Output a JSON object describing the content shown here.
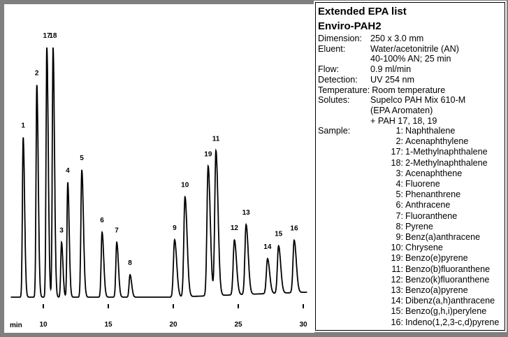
{
  "info": {
    "title1": "Extended EPA list",
    "title2": "Enviro-PAH2",
    "rows": [
      {
        "key": "Dimension:",
        "value": "250 x 3.0 mm"
      },
      {
        "key": "Eluent:",
        "value": "Water/acetonitrile (AN)"
      },
      {
        "key": "",
        "value": "40-100% AN; 25 min"
      },
      {
        "key": "Flow:",
        "value": "0.9 ml/min"
      },
      {
        "key": "Detection:",
        "value": "UV 254 nm"
      },
      {
        "key": "Temperature:",
        "value": "Room temperature"
      },
      {
        "key": "Solutes:",
        "value": "Supelco PAH Mix 610-M"
      },
      {
        "key": "",
        "value": "(EPA Aromaten)"
      },
      {
        "key": "",
        "value": "+ PAH 17, 18, 19"
      }
    ],
    "sample_label": "Sample:",
    "sample": [
      {
        "n": "1:",
        "name": "Naphthalene"
      },
      {
        "n": "2:",
        "name": "Acenaphthylene"
      },
      {
        "n": "17:",
        "name": "1-Methylnaphthalene"
      },
      {
        "n": "18:",
        "name": "2-Methylnaphthalene"
      },
      {
        "n": "3:",
        "name": "Acenaphthene"
      },
      {
        "n": "4:",
        "name": "Fluorene"
      },
      {
        "n": "5:",
        "name": "Phenanthrene"
      },
      {
        "n": "6:",
        "name": "Anthracene"
      },
      {
        "n": "7:",
        "name": "Fluoranthene"
      },
      {
        "n": "8:",
        "name": "Pyrene"
      },
      {
        "n": "9:",
        "name": "Benz(a)anthracene"
      },
      {
        "n": "10:",
        "name": "Chrysene"
      },
      {
        "n": "19:",
        "name": "Benzo(e)pyrene"
      },
      {
        "n": "11:",
        "name": "Benzo(b)fluoranthene"
      },
      {
        "n": "12:",
        "name": "Benzo(k)fluoranthene"
      },
      {
        "n": "13:",
        "name": "Benzo(a)pyrene"
      },
      {
        "n": "14:",
        "name": "Dibenz(a,h)anthracene"
      },
      {
        "n": "15:",
        "name": "Benzo(g,h,i)perylene"
      },
      {
        "n": "16:",
        "name": "Indeno(1,2,3-c,d)pyrene"
      }
    ]
  },
  "chart_data": {
    "type": "line",
    "xlabel": "min",
    "xticks": [
      10,
      15,
      20,
      25,
      30
    ],
    "xlim": [
      7.5,
      30.3
    ],
    "ylim": [
      0,
      100
    ],
    "grid": false,
    "peaks": [
      {
        "label": "1",
        "t": 8.45,
        "h": 64
      },
      {
        "label": "2",
        "t": 9.5,
        "h": 85
      },
      {
        "label": "17",
        "t": 10.27,
        "h": 100
      },
      {
        "label": "18",
        "t": 10.75,
        "h": 100
      },
      {
        "label": "3",
        "t": 11.4,
        "h": 22
      },
      {
        "label": "4",
        "t": 11.88,
        "h": 46
      },
      {
        "label": "5",
        "t": 12.96,
        "h": 51
      },
      {
        "label": "6",
        "t": 14.52,
        "h": 26
      },
      {
        "label": "7",
        "t": 15.65,
        "h": 22
      },
      {
        "label": "8",
        "t": 16.67,
        "h": 9
      },
      {
        "label": "9",
        "t": 20.1,
        "h": 23
      },
      {
        "label": "10",
        "t": 20.9,
        "h": 40
      },
      {
        "label": "19",
        "t": 22.68,
        "h": 52
      },
      {
        "label": "11",
        "t": 23.28,
        "h": 58
      },
      {
        "label": "12",
        "t": 24.7,
        "h": 22
      },
      {
        "label": "13",
        "t": 25.6,
        "h": 28
      },
      {
        "label": "14",
        "t": 27.25,
        "h": 14
      },
      {
        "label": "15",
        "t": 28.1,
        "h": 19
      },
      {
        "label": "16",
        "t": 29.3,
        "h": 21
      }
    ]
  }
}
